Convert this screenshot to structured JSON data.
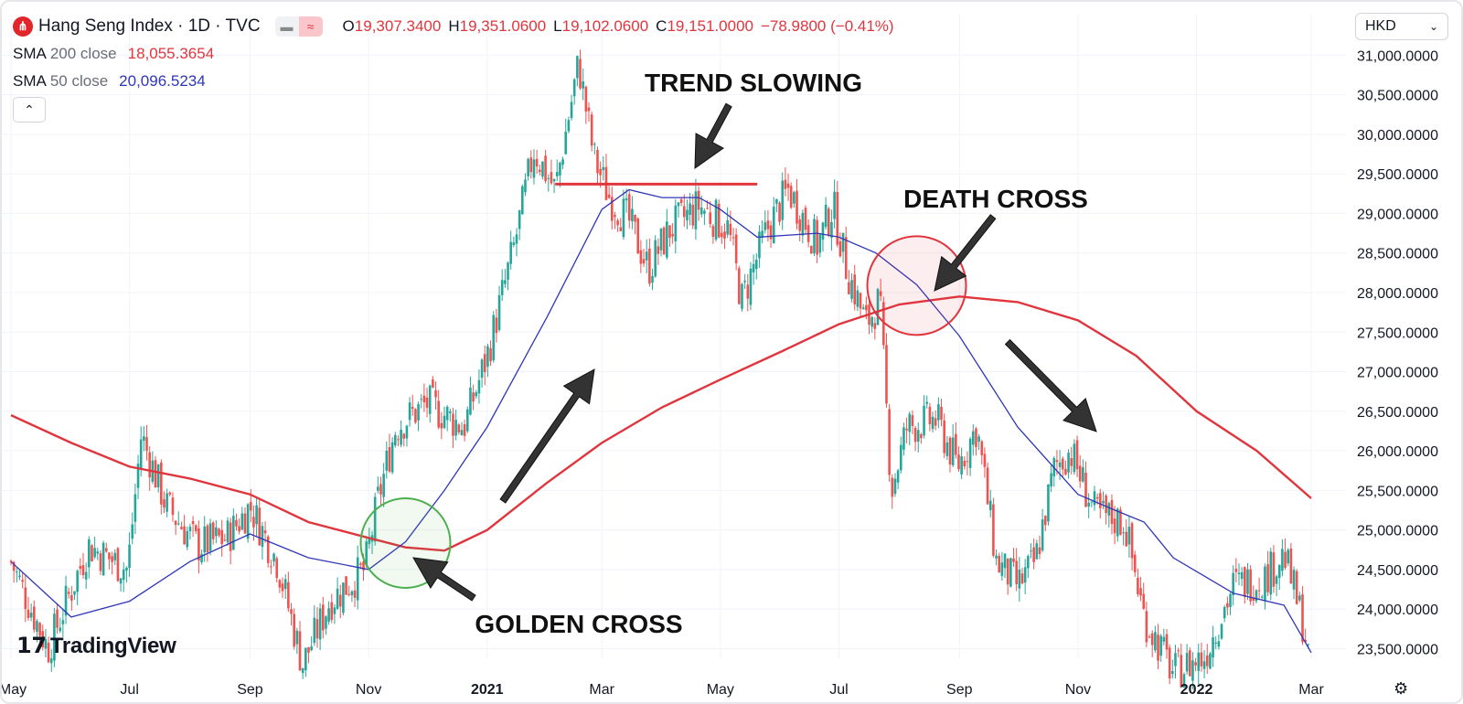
{
  "header": {
    "symbol_icon": "hang-seng-logo-icon",
    "title": "Hang Seng Index · 1D · TVC",
    "open_label": "O",
    "open": "19,307.3400",
    "high_label": "H",
    "high": "19,351.0600",
    "low_label": "L",
    "low": "19,102.0600",
    "close_label": "C",
    "close": "19,151.0000",
    "change": "−78.9800 (−0.41%)"
  },
  "indicators": [
    {
      "name": "SMA",
      "param": "200 close",
      "value": "18,055.3654",
      "color": "#e1353e"
    },
    {
      "name": "SMA",
      "param": "50 close",
      "value": "20,096.5234",
      "color": "#2f36b8"
    }
  ],
  "currency": "HKD",
  "logo": "TradingView",
  "colors": {
    "up": "#26a69a",
    "down": "#ef5350",
    "sma200": "#e1353e",
    "sma50": "#2f36b8",
    "golden": "#4caf50",
    "death": "#e1353e"
  },
  "chart_data": {
    "type": "candlestick",
    "ylim": [
      23300,
      31300
    ],
    "yticks": [
      31000,
      30500,
      30000,
      29500,
      29000,
      28500,
      28000,
      27500,
      27000,
      26500,
      26000,
      25500,
      25000,
      24500,
      24000,
      23500
    ],
    "ytick_labels": [
      "31,000.0000",
      "30,500.0000",
      "30,000.0000",
      "29,500.0000",
      "29,000.0000",
      "28,500.0000",
      "28,000.0000",
      "27,500.0000",
      "27,000.0000",
      "26,500.0000",
      "26,000.0000",
      "25,500.0000",
      "25,000.0000",
      "24,500.0000",
      "24,000.0000",
      "23,500.0000"
    ],
    "xticks": [
      {
        "label": "May",
        "date": "2020-05-01"
      },
      {
        "label": "Jul",
        "date": "2020-07-01"
      },
      {
        "label": "Sep",
        "date": "2020-09-01"
      },
      {
        "label": "Nov",
        "date": "2020-11-01"
      },
      {
        "label": "2021",
        "date": "2021-01-01",
        "bold": true
      },
      {
        "label": "Mar",
        "date": "2021-03-01"
      },
      {
        "label": "May",
        "date": "2021-05-01"
      },
      {
        "label": "Jul",
        "date": "2021-07-01"
      },
      {
        "label": "Sep",
        "date": "2021-09-01"
      },
      {
        "label": "Nov",
        "date": "2021-11-01"
      },
      {
        "label": "2022",
        "date": "2022-01-01",
        "bold": true
      },
      {
        "label": "Mar",
        "date": "2022-03-01"
      }
    ],
    "price_path": [
      [
        "2020-05-01",
        24600
      ],
      [
        "2020-05-20",
        23500
      ],
      [
        "2020-06-10",
        24800
      ],
      [
        "2020-06-30",
        24500
      ],
      [
        "2020-07-07",
        26200
      ],
      [
        "2020-07-20",
        25300
      ],
      [
        "2020-08-05",
        24800
      ],
      [
        "2020-08-20",
        24900
      ],
      [
        "2020-09-01",
        25300
      ],
      [
        "2020-09-15",
        24600
      ],
      [
        "2020-09-28",
        23300
      ],
      [
        "2020-10-12",
        24100
      ],
      [
        "2020-10-30",
        24500
      ],
      [
        "2020-11-06",
        25400
      ],
      [
        "2020-11-15",
        26300
      ],
      [
        "2020-12-01",
        26600
      ],
      [
        "2020-12-20",
        26300
      ],
      [
        "2021-01-01",
        27200
      ],
      [
        "2021-01-15",
        28600
      ],
      [
        "2021-01-25",
        29800
      ],
      [
        "2021-02-05",
        29300
      ],
      [
        "2021-02-17",
        30900
      ],
      [
        "2021-02-25",
        29700
      ],
      [
        "2021-03-05",
        29200
      ],
      [
        "2021-03-15",
        28900
      ],
      [
        "2021-03-25",
        28300
      ],
      [
        "2021-04-05",
        28800
      ],
      [
        "2021-04-20",
        29100
      ],
      [
        "2021-05-05",
        28800
      ],
      [
        "2021-05-12",
        27900
      ],
      [
        "2021-05-25",
        28800
      ],
      [
        "2021-06-05",
        29300
      ],
      [
        "2021-06-20",
        28600
      ],
      [
        "2021-06-28",
        29100
      ],
      [
        "2021-07-05",
        28300
      ],
      [
        "2021-07-15",
        27600
      ],
      [
        "2021-07-22",
        27900
      ],
      [
        "2021-07-28",
        25500
      ],
      [
        "2021-08-05",
        26300
      ],
      [
        "2021-08-20",
        26400
      ],
      [
        "2021-08-31",
        25800
      ],
      [
        "2021-09-10",
        26300
      ],
      [
        "2021-09-20",
        24600
      ],
      [
        "2021-10-01",
        24300
      ],
      [
        "2021-10-10",
        24600
      ],
      [
        "2021-10-20",
        25800
      ],
      [
        "2021-10-28",
        26000
      ],
      [
        "2021-11-10",
        25200
      ],
      [
        "2021-11-25",
        25100
      ],
      [
        "2021-12-05",
        23900
      ],
      [
        "2021-12-20",
        23200
      ],
      [
        "2022-01-05",
        23400
      ],
      [
        "2022-01-20",
        24300
      ],
      [
        "2022-02-05",
        24400
      ],
      [
        "2022-02-15",
        24700
      ],
      [
        "2022-02-25",
        23800
      ],
      [
        "2022-03-01",
        23200
      ]
    ],
    "sma200": [
      [
        "2020-05-01",
        26450
      ],
      [
        "2020-06-01",
        26100
      ],
      [
        "2020-07-01",
        25800
      ],
      [
        "2020-08-01",
        25650
      ],
      [
        "2020-09-01",
        25450
      ],
      [
        "2020-10-01",
        25100
      ],
      [
        "2020-11-01",
        24900
      ],
      [
        "2020-11-20",
        24780
      ],
      [
        "2020-12-10",
        24740
      ],
      [
        "2021-01-01",
        25000
      ],
      [
        "2021-02-01",
        25600
      ],
      [
        "2021-03-01",
        26100
      ],
      [
        "2021-04-01",
        26550
      ],
      [
        "2021-05-01",
        26900
      ],
      [
        "2021-06-01",
        27250
      ],
      [
        "2021-07-01",
        27600
      ],
      [
        "2021-08-01",
        27850
      ],
      [
        "2021-09-01",
        27950
      ],
      [
        "2021-10-01",
        27880
      ],
      [
        "2021-11-01",
        27650
      ],
      [
        "2021-12-01",
        27200
      ],
      [
        "2022-01-01",
        26500
      ],
      [
        "2022-02-01",
        26000
      ],
      [
        "2022-03-01",
        25400
      ]
    ],
    "sma50": [
      [
        "2020-05-01",
        24600
      ],
      [
        "2020-06-01",
        23900
      ],
      [
        "2020-07-01",
        24100
      ],
      [
        "2020-08-01",
        24600
      ],
      [
        "2020-09-01",
        24950
      ],
      [
        "2020-10-01",
        24650
      ],
      [
        "2020-11-01",
        24500
      ],
      [
        "2020-11-20",
        24850
      ],
      [
        "2020-12-10",
        25500
      ],
      [
        "2021-01-01",
        26300
      ],
      [
        "2021-02-01",
        27700
      ],
      [
        "2021-03-01",
        29050
      ],
      [
        "2021-03-15",
        29300
      ],
      [
        "2021-04-01",
        29200
      ],
      [
        "2021-04-20",
        29200
      ],
      [
        "2021-05-01",
        29050
      ],
      [
        "2021-05-20",
        28700
      ],
      [
        "2021-06-20",
        28750
      ],
      [
        "2021-07-01",
        28700
      ],
      [
        "2021-07-20",
        28500
      ],
      [
        "2021-08-10",
        28100
      ],
      [
        "2021-09-01",
        27450
      ],
      [
        "2021-10-01",
        26300
      ],
      [
        "2021-11-01",
        25450
      ],
      [
        "2021-11-20",
        25250
      ],
      [
        "2021-12-05",
        25100
      ],
      [
        "2021-12-20",
        24650
      ],
      [
        "2022-01-20",
        24200
      ],
      [
        "2022-02-15",
        24050
      ],
      [
        "2022-03-01",
        23450
      ]
    ],
    "resistance_line": {
      "start": "2021-02-05",
      "end": "2021-05-20",
      "value": 29370
    },
    "golden_cross": {
      "date": "2020-11-20",
      "value": 24800
    },
    "death_cross": {
      "date": "2021-08-10",
      "value": 28100
    },
    "annotations": [
      {
        "text": "TREND SLOWING"
      },
      {
        "text": "DEATH CROSS"
      },
      {
        "text": "GOLDEN CROSS"
      }
    ]
  }
}
